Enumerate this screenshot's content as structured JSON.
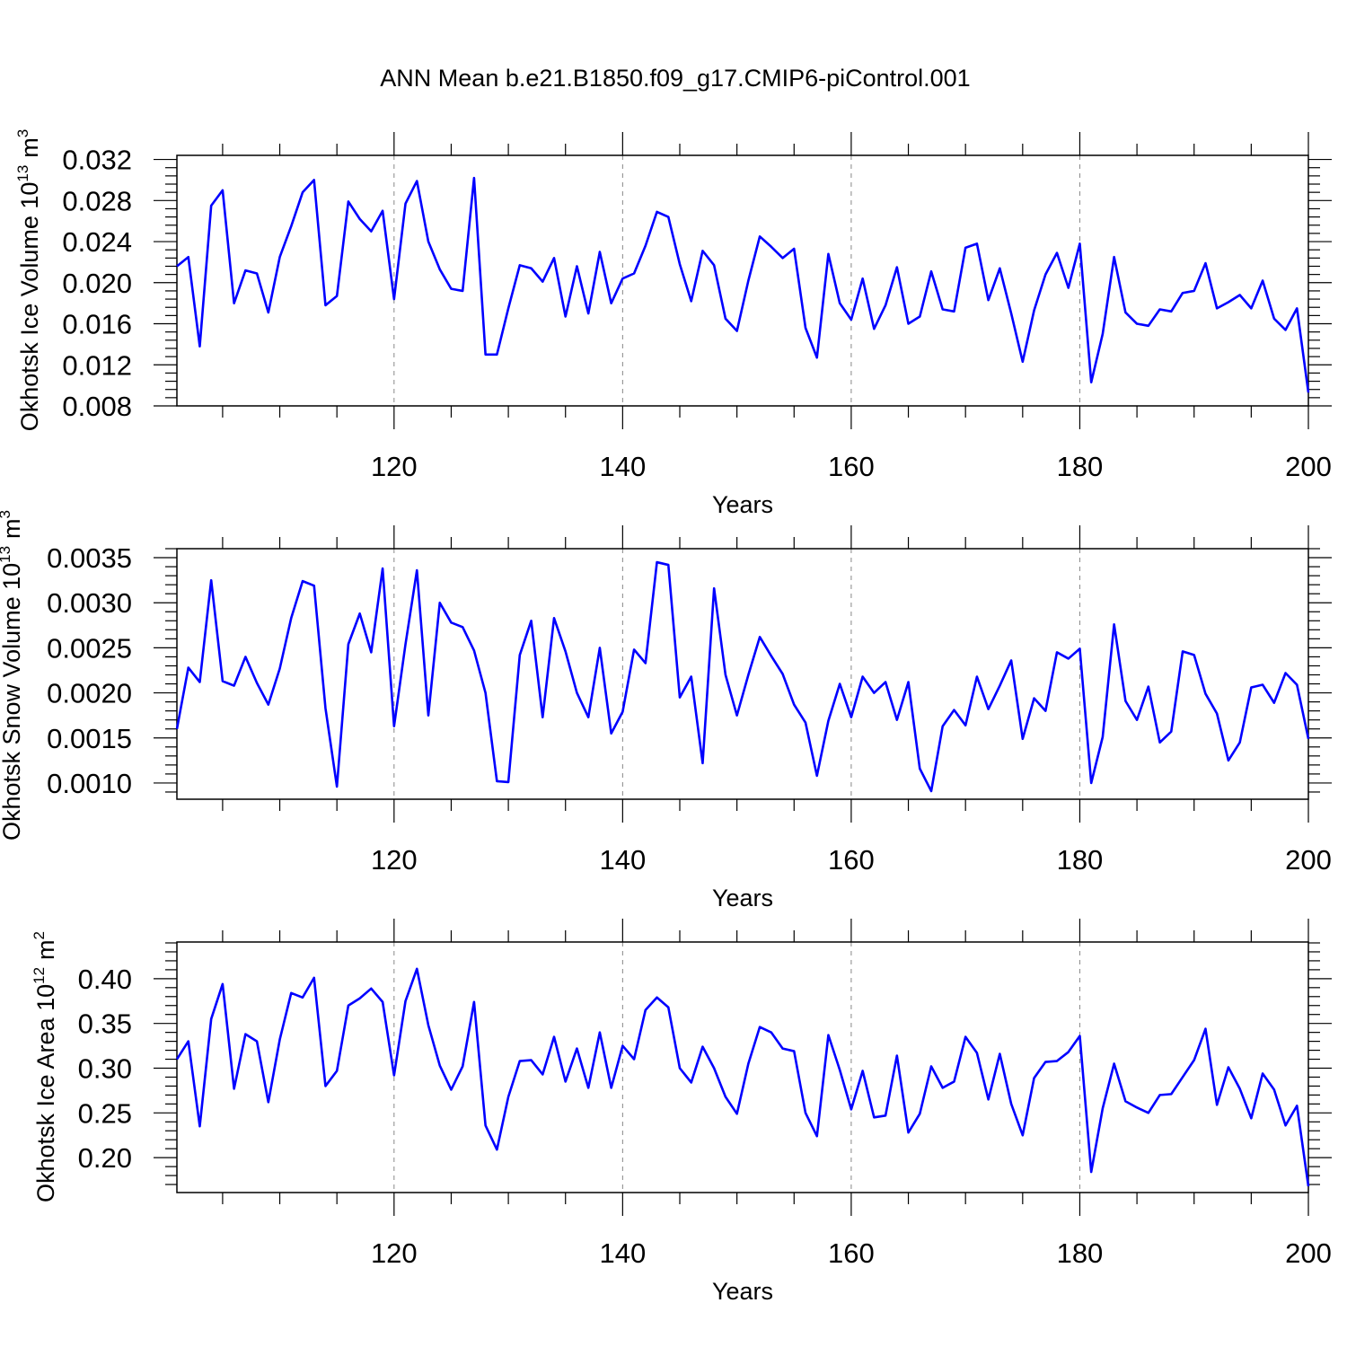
{
  "figure": {
    "title": "ANN Mean b.e21.B1850.f09_g17.CMIP6-piControl.001",
    "line_color": "#0000ff",
    "grid_color": "#888888"
  },
  "chart_data": [
    {
      "type": "line",
      "title": "",
      "xlabel": "Years",
      "ylabel": "Okhotsk Ice Volume 10",
      "ylabel_sup": "13",
      "ylabel_unit": "m",
      "ylabel_unit_sup": "3",
      "xlim": [
        101,
        200
      ],
      "ylim": [
        0.008,
        0.0324
      ],
      "xticks": [
        120,
        140,
        160,
        180,
        200
      ],
      "xtick_labels": [
        "120",
        "140",
        "160",
        "180",
        "200"
      ],
      "yticks": [
        0.008,
        0.012,
        0.016,
        0.02,
        0.024,
        0.028,
        0.032
      ],
      "ytick_labels": [
        "0.008",
        "0.012",
        "0.016",
        "0.020",
        "0.024",
        "0.028",
        "0.032"
      ],
      "grid_x": [
        120,
        140,
        160,
        180
      ],
      "x_start": 101,
      "values": [
        0.0216,
        0.0225,
        0.0138,
        0.0275,
        0.029,
        0.018,
        0.0212,
        0.0209,
        0.0171,
        0.0225,
        0.0255,
        0.0288,
        0.03,
        0.0178,
        0.0187,
        0.0279,
        0.0262,
        0.025,
        0.027,
        0.0184,
        0.0277,
        0.0299,
        0.024,
        0.0213,
        0.0194,
        0.0192,
        0.0302,
        0.013,
        0.013,
        0.0175,
        0.0217,
        0.0214,
        0.0201,
        0.0224,
        0.0167,
        0.0216,
        0.017,
        0.023,
        0.018,
        0.0204,
        0.0209,
        0.0236,
        0.0269,
        0.0264,
        0.0218,
        0.0182,
        0.0231,
        0.0217,
        0.0165,
        0.0153,
        0.0202,
        0.0245,
        0.0235,
        0.0224,
        0.0233,
        0.0156,
        0.0127,
        0.0228,
        0.018,
        0.0164,
        0.0204,
        0.0155,
        0.0178,
        0.0215,
        0.016,
        0.0167,
        0.0211,
        0.0174,
        0.0172,
        0.0234,
        0.0238,
        0.0183,
        0.0214,
        0.017,
        0.0123,
        0.0173,
        0.0208,
        0.0229,
        0.0195,
        0.0238,
        0.0103,
        0.015,
        0.0225,
        0.0171,
        0.016,
        0.0158,
        0.0174,
        0.0172,
        0.019,
        0.0192,
        0.0219,
        0.0175,
        0.0181,
        0.0188,
        0.0175,
        0.0202,
        0.0165,
        0.0154,
        0.0175,
        0.0093
      ]
    },
    {
      "type": "line",
      "title": "",
      "xlabel": "Years",
      "ylabel": "Okhotsk Snow Volume 10",
      "ylabel_sup": "13",
      "ylabel_unit": "m",
      "ylabel_unit_sup": "3",
      "xlim": [
        101,
        200
      ],
      "ylim": [
        0.00082,
        0.0036
      ],
      "xticks": [
        120,
        140,
        160,
        180,
        200
      ],
      "xtick_labels": [
        "120",
        "140",
        "160",
        "180",
        "200"
      ],
      "yticks": [
        0.001,
        0.0015,
        0.002,
        0.0025,
        0.003,
        0.0035
      ],
      "ytick_labels": [
        "0.0010",
        "0.0015",
        "0.0020",
        "0.0025",
        "0.0030",
        "0.0035"
      ],
      "grid_x": [
        120,
        140,
        160,
        180
      ],
      "x_start": 101,
      "values": [
        0.0016,
        0.00228,
        0.00212,
        0.00325,
        0.00213,
        0.00208,
        0.0024,
        0.00211,
        0.00187,
        0.00227,
        0.00283,
        0.00324,
        0.00319,
        0.00183,
        0.00096,
        0.00254,
        0.00288,
        0.00245,
        0.00338,
        0.00163,
        0.00254,
        0.00336,
        0.00175,
        0.003,
        0.00278,
        0.00273,
        0.00247,
        0.002,
        0.00102,
        0.00101,
        0.00242,
        0.0028,
        0.00173,
        0.00283,
        0.00246,
        0.002,
        0.00173,
        0.0025,
        0.00155,
        0.00179,
        0.00248,
        0.00233,
        0.00345,
        0.00342,
        0.00195,
        0.00218,
        0.00122,
        0.00316,
        0.0022,
        0.00175,
        0.0022,
        0.00262,
        0.00241,
        0.00221,
        0.00187,
        0.00167,
        0.00108,
        0.00169,
        0.0021,
        0.00173,
        0.00218,
        0.002,
        0.00212,
        0.0017,
        0.00212,
        0.00116,
        0.00091,
        0.00163,
        0.00181,
        0.00164,
        0.00218,
        0.00182,
        0.00208,
        0.00236,
        0.00149,
        0.00194,
        0.0018,
        0.00245,
        0.00238,
        0.00249,
        0.001,
        0.00151,
        0.00276,
        0.00191,
        0.0017,
        0.00207,
        0.00145,
        0.00157,
        0.00246,
        0.00242,
        0.00199,
        0.00177,
        0.00125,
        0.00145,
        0.00206,
        0.00209,
        0.00189,
        0.00222,
        0.00209,
        0.00149
      ]
    },
    {
      "type": "line",
      "title": "",
      "xlabel": "Years",
      "ylabel": "Okhotsk Ice Area 10",
      "ylabel_sup": "12",
      "ylabel_unit": "m",
      "ylabel_unit_sup": "2",
      "xlim": [
        101,
        200
      ],
      "ylim": [
        0.161,
        0.441
      ],
      "xticks": [
        120,
        140,
        160,
        180,
        200
      ],
      "xtick_labels": [
        "120",
        "140",
        "160",
        "180",
        "200"
      ],
      "yticks": [
        0.2,
        0.25,
        0.3,
        0.35,
        0.4
      ],
      "ytick_labels": [
        "0.20",
        "0.25",
        "0.30",
        "0.35",
        "0.40"
      ],
      "grid_x": [
        120,
        140,
        160,
        180
      ],
      "x_start": 101,
      "values": [
        0.31,
        0.33,
        0.235,
        0.355,
        0.394,
        0.277,
        0.338,
        0.33,
        0.262,
        0.332,
        0.384,
        0.379,
        0.401,
        0.28,
        0.297,
        0.37,
        0.378,
        0.389,
        0.374,
        0.292,
        0.375,
        0.411,
        0.348,
        0.303,
        0.276,
        0.302,
        0.374,
        0.236,
        0.209,
        0.268,
        0.308,
        0.309,
        0.293,
        0.335,
        0.285,
        0.322,
        0.278,
        0.34,
        0.278,
        0.325,
        0.31,
        0.365,
        0.379,
        0.368,
        0.3,
        0.284,
        0.324,
        0.3,
        0.268,
        0.249,
        0.305,
        0.346,
        0.34,
        0.322,
        0.319,
        0.25,
        0.224,
        0.337,
        0.298,
        0.254,
        0.297,
        0.245,
        0.247,
        0.314,
        0.228,
        0.249,
        0.302,
        0.278,
        0.285,
        0.335,
        0.317,
        0.265,
        0.316,
        0.26,
        0.225,
        0.289,
        0.307,
        0.308,
        0.318,
        0.336,
        0.184,
        0.255,
        0.305,
        0.263,
        0.256,
        0.25,
        0.27,
        0.271,
        0.29,
        0.309,
        0.344,
        0.259,
        0.301,
        0.277,
        0.244,
        0.294,
        0.276,
        0.236,
        0.258,
        0.168
      ]
    }
  ]
}
